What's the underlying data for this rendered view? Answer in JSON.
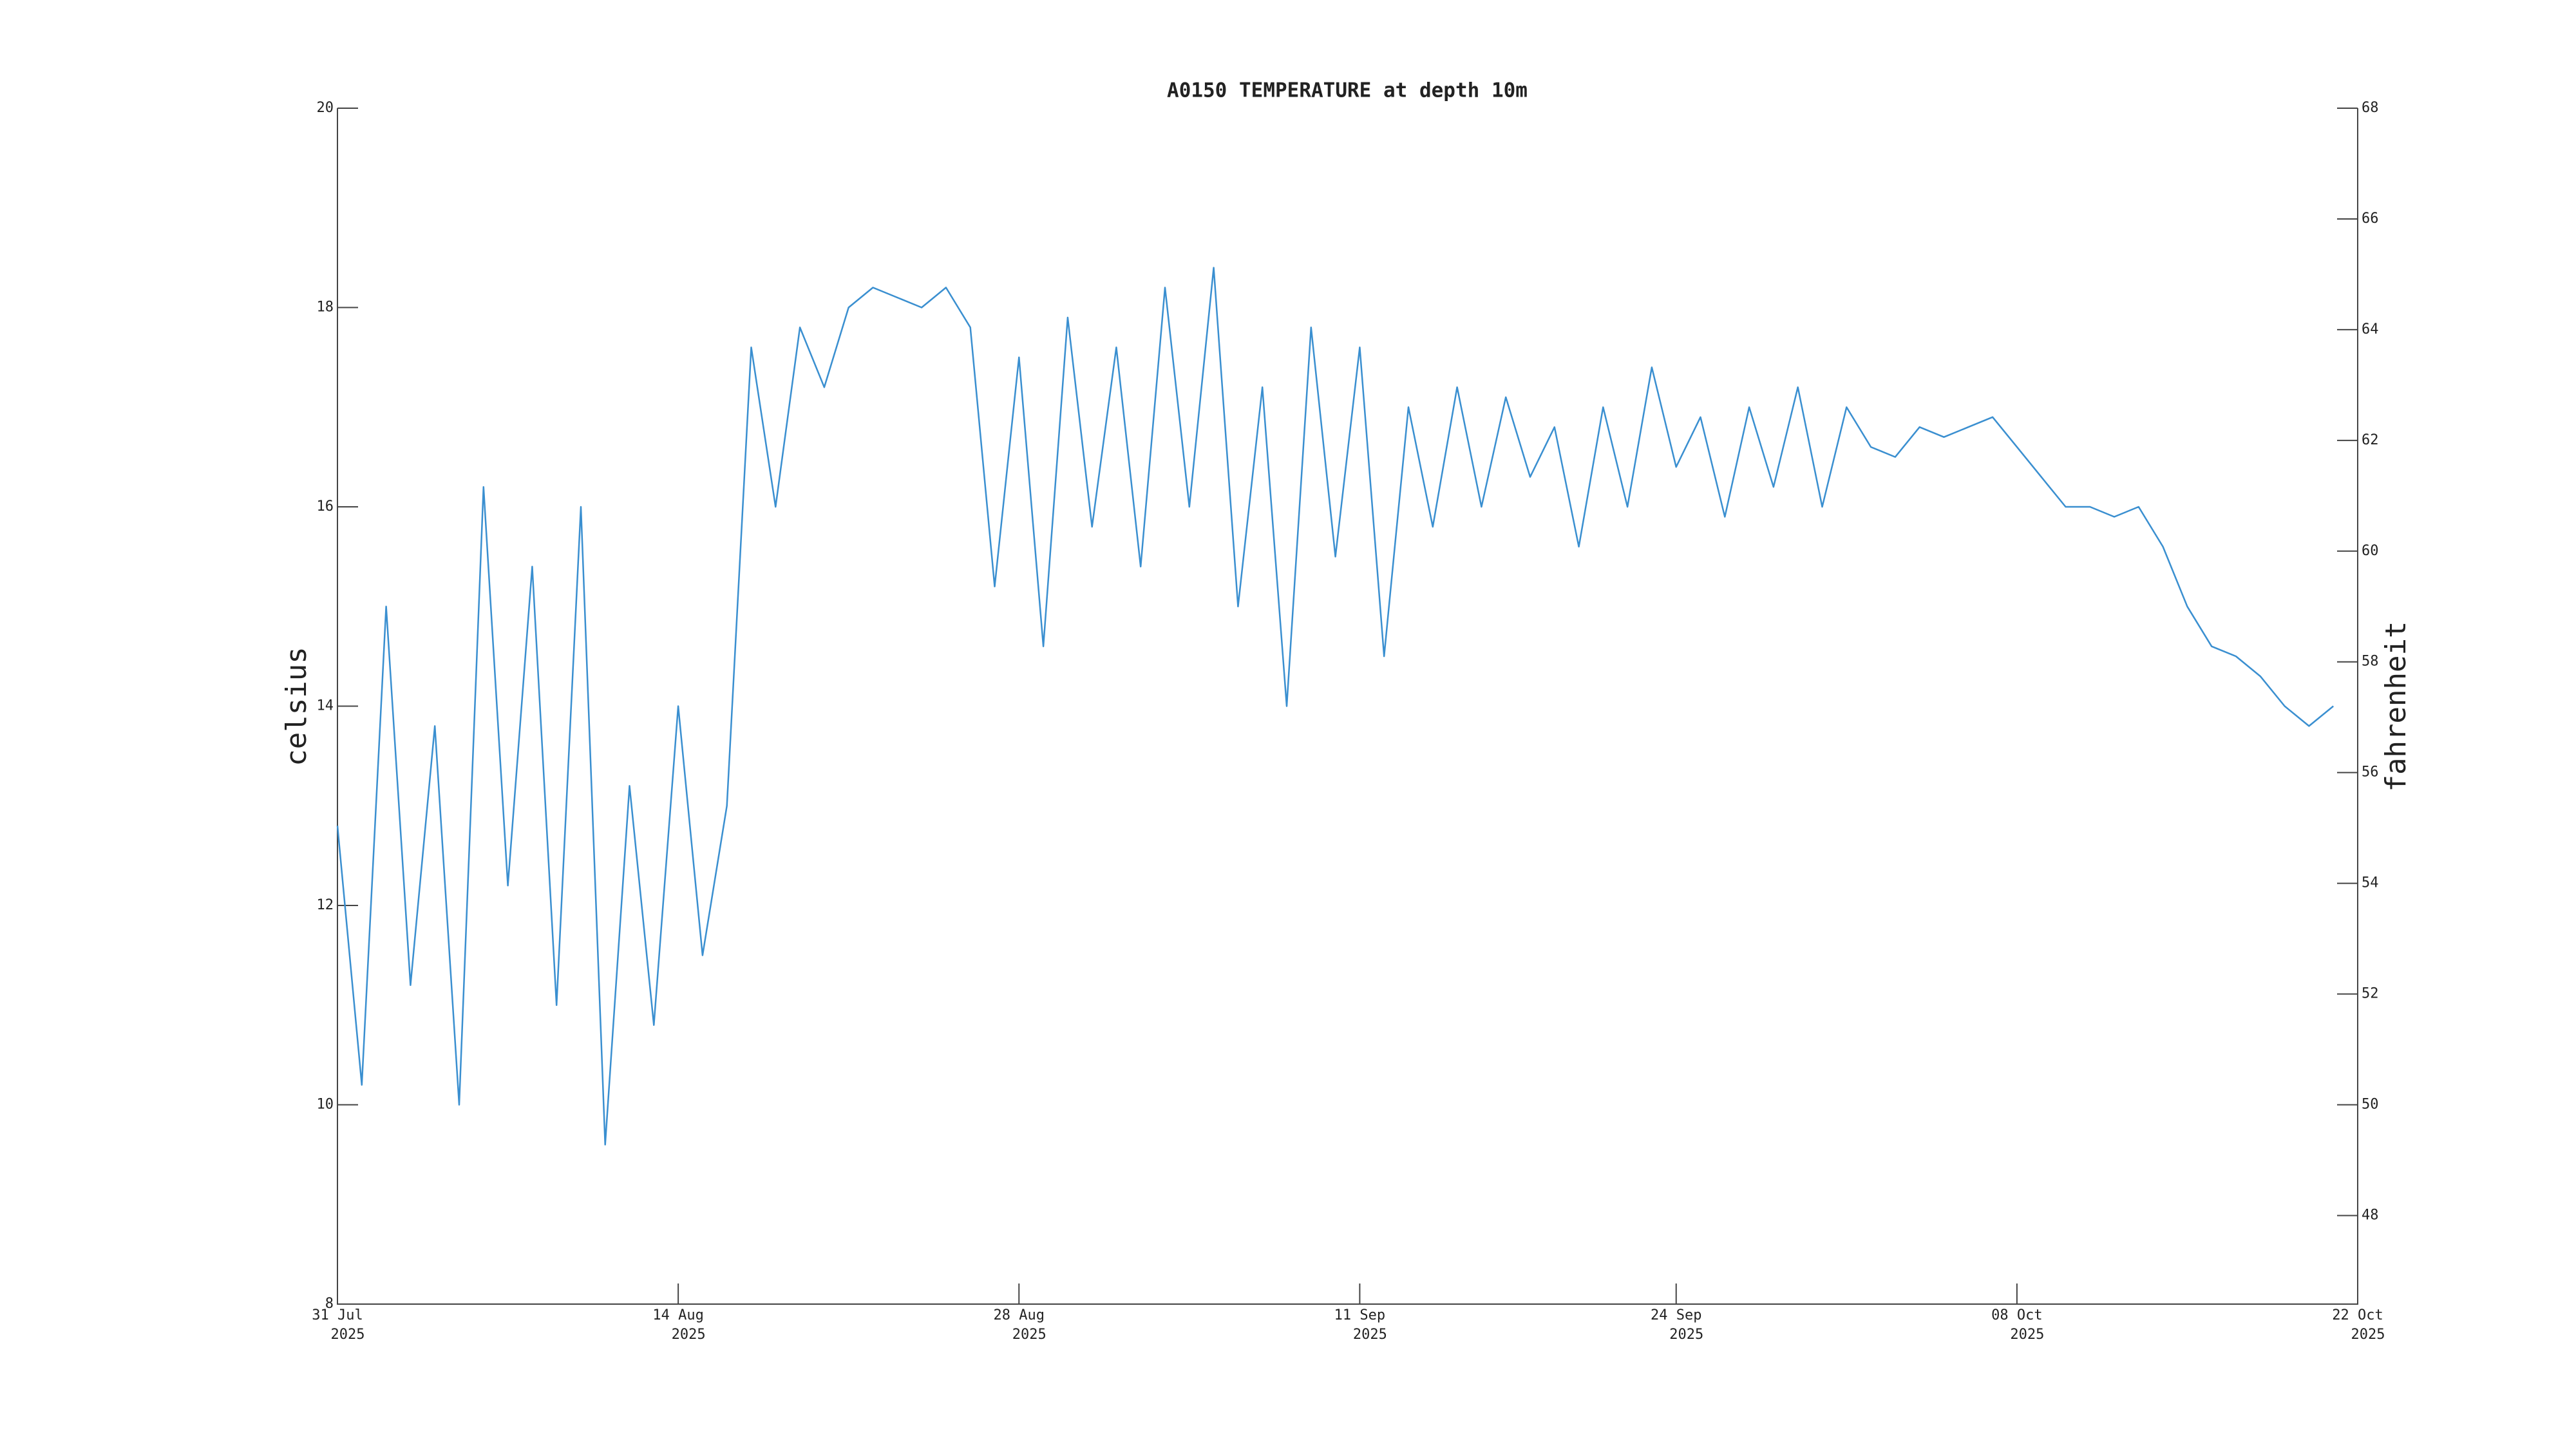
{
  "chart_data": {
    "type": "line",
    "title": "A0150 TEMPERATURE at depth 10m",
    "ylabel": "celsius",
    "y2label": "fahrenheit",
    "color": "#3a8fd0",
    "x": [
      "2025-07-31",
      "2025-08-01",
      "2025-08-02",
      "2025-08-03",
      "2025-08-04",
      "2025-08-05",
      "2025-08-06",
      "2025-08-07",
      "2025-08-08",
      "2025-08-09",
      "2025-08-10",
      "2025-08-11",
      "2025-08-12",
      "2025-08-13",
      "2025-08-14",
      "2025-08-15",
      "2025-08-16",
      "2025-08-17",
      "2025-08-18",
      "2025-08-19",
      "2025-08-20",
      "2025-08-21",
      "2025-08-22",
      "2025-08-23",
      "2025-08-24",
      "2025-08-25",
      "2025-08-26",
      "2025-08-27",
      "2025-08-28",
      "2025-08-29",
      "2025-08-30",
      "2025-08-31",
      "2025-09-01",
      "2025-09-02",
      "2025-09-03",
      "2025-09-04",
      "2025-09-05",
      "2025-09-06",
      "2025-09-07",
      "2025-09-08",
      "2025-09-09",
      "2025-09-10",
      "2025-09-11",
      "2025-09-12",
      "2025-09-13",
      "2025-09-14",
      "2025-09-15",
      "2025-09-16",
      "2025-09-17",
      "2025-09-18",
      "2025-09-19",
      "2025-09-20",
      "2025-09-21",
      "2025-09-22",
      "2025-09-23",
      "2025-09-24",
      "2025-09-25",
      "2025-09-26",
      "2025-09-27",
      "2025-09-28",
      "2025-09-29",
      "2025-09-30",
      "2025-10-01",
      "2025-10-02",
      "2025-10-03",
      "2025-10-04",
      "2025-10-05",
      "2025-10-06",
      "2025-10-07",
      "2025-10-08",
      "2025-10-09",
      "2025-10-10",
      "2025-10-11",
      "2025-10-12",
      "2025-10-13",
      "2025-10-14",
      "2025-10-15",
      "2025-10-16",
      "2025-10-17",
      "2025-10-18",
      "2025-10-19",
      "2025-10-20",
      "2025-10-21"
    ],
    "values": [
      12.8,
      10.2,
      15.0,
      11.2,
      13.8,
      10.0,
      16.2,
      12.2,
      15.4,
      11.0,
      16.0,
      9.6,
      13.2,
      10.8,
      14.0,
      11.5,
      13.0,
      17.6,
      16.0,
      17.8,
      17.2,
      18.0,
      18.2,
      18.1,
      18.0,
      18.2,
      17.8,
      15.2,
      17.5,
      14.6,
      17.9,
      15.8,
      17.6,
      15.4,
      18.2,
      16.0,
      18.4,
      15.0,
      17.2,
      14.0,
      17.8,
      15.5,
      17.6,
      14.5,
      17.0,
      15.8,
      17.2,
      16.0,
      17.1,
      16.3,
      16.8,
      15.6,
      17.0,
      16.0,
      17.4,
      16.4,
      16.9,
      15.9,
      17.0,
      16.2,
      17.2,
      16.0,
      17.0,
      16.6,
      16.5,
      16.8,
      16.7,
      16.8,
      16.9,
      16.6,
      16.3,
      16.0,
      16.0,
      15.9,
      16.0,
      15.6,
      15.0,
      14.6,
      14.5,
      14.3,
      14.0,
      13.8,
      14.0
    ],
    "xlim": [
      "2025-07-31",
      "2025-10-22"
    ],
    "xticks": [
      {
        "value": "2025-07-31",
        "label": [
          "31 Jul",
          "2025"
        ]
      },
      {
        "value": "2025-08-14",
        "label": [
          "14 Aug",
          "2025"
        ]
      },
      {
        "value": "2025-08-28",
        "label": [
          "28 Aug",
          "2025"
        ]
      },
      {
        "value": "2025-09-11",
        "label": [
          "11 Sep",
          "2025"
        ]
      },
      {
        "value": "2025-09-24",
        "label": [
          "24 Sep",
          "2025"
        ]
      },
      {
        "value": "2025-10-08",
        "label": [
          "08 Oct",
          "2025"
        ]
      },
      {
        "value": "2025-10-22",
        "label": [
          "22 Oct",
          "2025"
        ]
      }
    ],
    "ylim": [
      8,
      20
    ],
    "yticks": [
      8,
      10,
      12,
      14,
      16,
      18,
      20
    ],
    "y2lim": [
      46.4,
      68
    ],
    "y2ticks": [
      48,
      50,
      52,
      54,
      56,
      58,
      60,
      62,
      64,
      66,
      68
    ],
    "grid": false
  }
}
